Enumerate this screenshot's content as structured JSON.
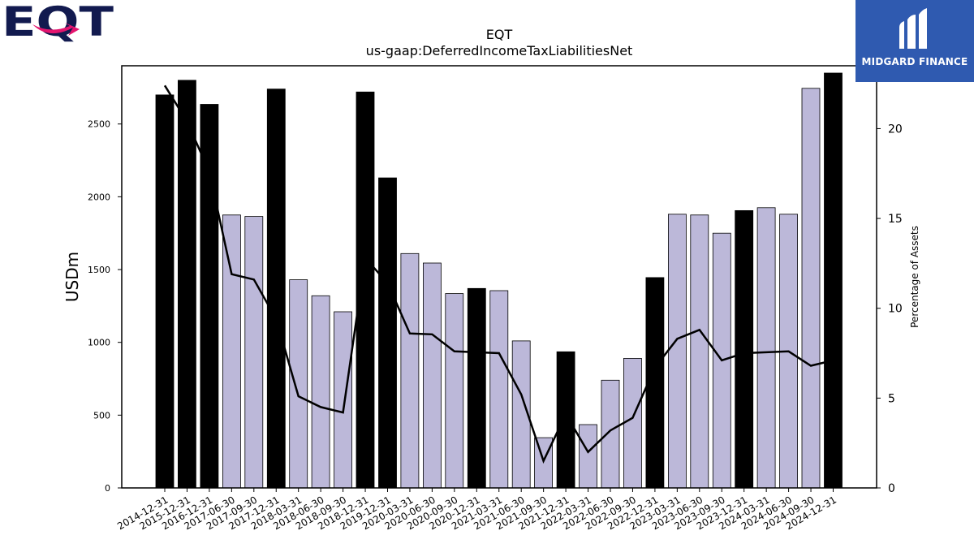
{
  "logos": {
    "left_text": "EQT",
    "right_text": "MIDGARD FINANCE"
  },
  "chart_data": {
    "type": "bar",
    "title": "EQT",
    "subtitle": "us-gaap:DeferredIncomeTaxLiabilitiesNet",
    "ylabel": "USDm",
    "y2label": "Percentage of Assets",
    "ylim": [
      0,
      2900
    ],
    "y2lim": [
      0,
      23.5
    ],
    "yticks": [
      0,
      500,
      1000,
      1500,
      2000,
      2500
    ],
    "y2ticks": [
      0,
      5,
      10,
      15,
      20
    ],
    "grid": false,
    "colors": {
      "annual": "#000000",
      "quarterly": "#bcb8d9",
      "line": "#000000"
    },
    "categories": [
      "2014-12-31",
      "2015-12-31",
      "2016-12-31",
      "2017-06-30",
      "2017-09-30",
      "2017-12-31",
      "2018-03-31",
      "2018-06-30",
      "2018-09-30",
      "2018-12-31",
      "2019-12-31",
      "2020-03-31",
      "2020-06-30",
      "2020-09-30",
      "2020-12-31",
      "2021-03-31",
      "2021-06-30",
      "2021-09-30",
      "2021-12-31",
      "2022-03-31",
      "2022-06-30",
      "2022-09-30",
      "2022-12-31",
      "2023-03-31",
      "2023-06-30",
      "2023-09-30",
      "2023-12-31",
      "2024-03-31",
      "2024-06-30",
      "2024-09-30",
      "2024-12-31"
    ],
    "values": [
      2700,
      2800,
      2635,
      1875,
      1865,
      2740,
      1430,
      1320,
      1210,
      2720,
      2130,
      1610,
      1545,
      1335,
      1370,
      1355,
      1010,
      345,
      935,
      435,
      740,
      890,
      1445,
      1880,
      1875,
      1750,
      1905,
      1925,
      1880,
      2745,
      2850
    ],
    "annual": [
      true,
      true,
      true,
      false,
      false,
      true,
      false,
      false,
      false,
      true,
      true,
      false,
      false,
      false,
      true,
      false,
      false,
      false,
      true,
      false,
      false,
      false,
      true,
      false,
      false,
      false,
      true,
      false,
      false,
      false,
      true
    ],
    "pct_assets": [
      22.4,
      20.4,
      17.6,
      11.9,
      11.6,
      9.4,
      5.1,
      4.5,
      4.2,
      12.8,
      11.4,
      8.6,
      8.55,
      7.6,
      7.55,
      7.5,
      5.2,
      1.5,
      4.1,
      2.0,
      3.2,
      3.9,
      6.7,
      8.3,
      8.8,
      7.1,
      7.5,
      7.55,
      7.6,
      6.8,
      7.1
    ]
  }
}
